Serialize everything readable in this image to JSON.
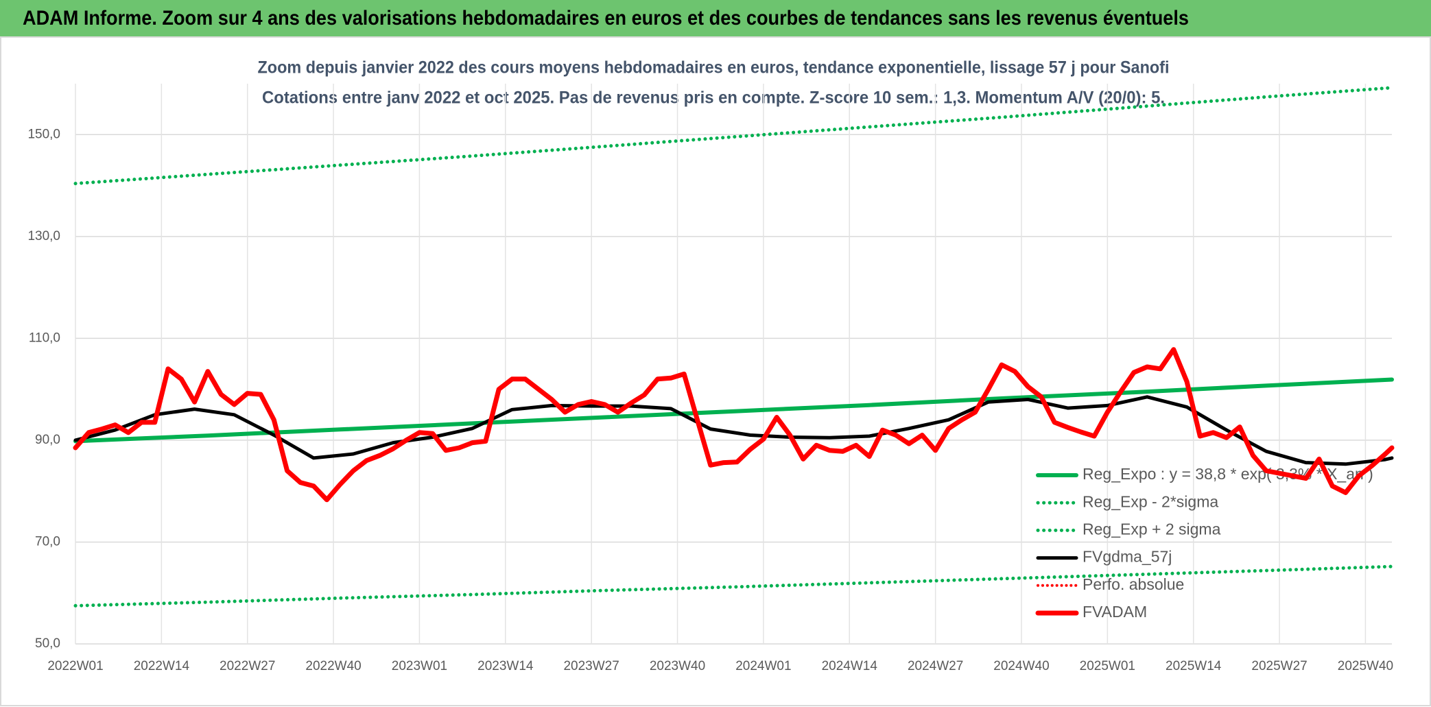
{
  "header": {
    "title": "ADAM Informe. Zoom sur 4 ans des valorisations hebdomadaires en euros et des courbes de tendances sans les revenus éventuels"
  },
  "chart_data": {
    "type": "line",
    "title": "Zoom depuis janvier 2022 des cours moyens hebdomadaires en euros, tendance exponentielle, lissage 57 j pour Sanofi",
    "subtitle": "Cotations entre janv 2022 et oct 2025. Pas de revenus pris en compte. Z-score 10 sem.: 1,3. Momentum A/V (20/0): 5.",
    "xlim": [
      0,
      199
    ],
    "xticks": [
      {
        "value": 0,
        "label": "2022W01"
      },
      {
        "value": 13,
        "label": "2022W14"
      },
      {
        "value": 26,
        "label": "2022W27"
      },
      {
        "value": 39,
        "label": "2022W40"
      },
      {
        "value": 52,
        "label": "2023W01"
      },
      {
        "value": 65,
        "label": "2023W14"
      },
      {
        "value": 78,
        "label": "2023W27"
      },
      {
        "value": 91,
        "label": "2023W40"
      },
      {
        "value": 104,
        "label": "2024W01"
      },
      {
        "value": 117,
        "label": "2024W14"
      },
      {
        "value": 130,
        "label": "2024W27"
      },
      {
        "value": 143,
        "label": "2024W40"
      },
      {
        "value": 156,
        "label": "2025W01"
      },
      {
        "value": 169,
        "label": "2025W14"
      },
      {
        "value": 182,
        "label": "2025W27"
      },
      {
        "value": 195,
        "label": "2025W40"
      }
    ],
    "ylim": [
      50,
      160
    ],
    "yticks": [
      {
        "value": 50,
        "label": "50,0"
      },
      {
        "value": 70,
        "label": "70,0"
      },
      {
        "value": 90,
        "label": "90,0"
      },
      {
        "value": 110,
        "label": "110,0"
      },
      {
        "value": 130,
        "label": "130,0"
      },
      {
        "value": 150,
        "label": "150,0"
      }
    ],
    "grid": true,
    "legend": "bottom-right",
    "series": [
      {
        "name": "Reg_Expo : y = 38,8 * exp( 3,3% * X_an )",
        "color": "#00b050",
        "style": "solid",
        "width": 6,
        "x": [
          0,
          20,
          40,
          60,
          80,
          100,
          120,
          140,
          160,
          180,
          199
        ],
        "values": [
          89.8,
          90.9,
          92.1,
          93.3,
          94.5,
          95.7,
          96.9,
          98.2,
          99.4,
          100.7,
          101.9
        ]
      },
      {
        "name": "Reg_Exp - 2*sigma",
        "color": "#00b050",
        "style": "dotted",
        "width": 5,
        "x": [
          0,
          20,
          40,
          60,
          80,
          100,
          120,
          140,
          160,
          180,
          199
        ],
        "values": [
          57.5,
          58.2,
          59.0,
          59.7,
          60.5,
          61.2,
          62.0,
          62.8,
          63.6,
          64.4,
          65.2
        ]
      },
      {
        "name": "Reg_Exp + 2 sigma",
        "color": "#00b050",
        "style": "dotted",
        "width": 5,
        "x": [
          0,
          20,
          40,
          60,
          80,
          100,
          120,
          140,
          160,
          180,
          199
        ],
        "values": [
          140.4,
          142.2,
          144.0,
          145.8,
          147.7,
          149.6,
          151.5,
          153.4,
          155.4,
          157.4,
          159.2
        ]
      },
      {
        "name": "FVgdma_57j",
        "color": "#000000",
        "style": "solid",
        "width": 5,
        "x": [
          0,
          6,
          12,
          18,
          24,
          30,
          36,
          42,
          48,
          54,
          60,
          66,
          72,
          78,
          84,
          90,
          96,
          102,
          108,
          114,
          120,
          126,
          132,
          138,
          144,
          150,
          156,
          162,
          168,
          174,
          180,
          186,
          192,
          198,
          199
        ],
        "values": [
          90,
          92,
          95,
          96.1,
          95,
          91,
          86.5,
          87.3,
          89.5,
          90.6,
          92.3,
          96,
          96.8,
          96.7,
          96.7,
          96.2,
          92.2,
          91,
          90.6,
          90.5,
          90.8,
          92.3,
          94,
          97.5,
          98,
          96.3,
          96.8,
          98.5,
          96.5,
          92,
          87.8,
          85.6,
          85.3,
          86.2,
          86.5
        ]
      },
      {
        "name": "Perfo. absolue",
        "color": "#ff0000",
        "style": "dotted",
        "width": 4
      },
      {
        "name": "FVADAM",
        "color": "#ff0000",
        "style": "solid",
        "width": 7,
        "x": [
          0,
          2,
          4,
          6,
          8,
          10,
          12,
          14,
          16,
          18,
          20,
          22,
          24,
          26,
          28,
          30,
          32,
          34,
          36,
          38,
          40,
          42,
          44,
          46,
          48,
          50,
          52,
          54,
          56,
          58,
          60,
          62,
          64,
          66,
          68,
          70,
          72,
          74,
          76,
          78,
          80,
          82,
          84,
          86,
          88,
          90,
          92,
          94,
          96,
          98,
          100,
          102,
          104,
          106,
          108,
          110,
          112,
          114,
          116,
          118,
          120,
          122,
          124,
          126,
          128,
          130,
          132,
          134,
          136,
          138,
          140,
          142,
          144,
          146,
          148,
          150,
          152,
          154,
          156,
          158,
          160,
          162,
          164,
          166,
          168,
          170,
          172,
          174,
          176,
          178,
          180,
          182,
          184,
          186,
          188,
          190,
          192,
          194,
          196,
          198,
          199
        ],
        "values": [
          88.5,
          91.5,
          92.2,
          93,
          91.5,
          93.5,
          93.5,
          104,
          102,
          97.5,
          103.5,
          99,
          97,
          99.2,
          99,
          94,
          84,
          81.7,
          81,
          78.3,
          81.3,
          84,
          86,
          87,
          88.3,
          90,
          91.5,
          91.3,
          88,
          88.5,
          89.5,
          89.8,
          100,
          102,
          102,
          100,
          98,
          95.5,
          97,
          97.6,
          97,
          95.5,
          97.3,
          98.9,
          102,
          102.2,
          103,
          94,
          85.1,
          85.6,
          85.7,
          88.2,
          90.2,
          94.5,
          91,
          86.3,
          89,
          88,
          87.8,
          89,
          86.8,
          92,
          91,
          89.3,
          91,
          88,
          92.3,
          94,
          95.5,
          100,
          104.8,
          103.5,
          100.5,
          98.5,
          93.5,
          92.5,
          91.6,
          90.8,
          95.5,
          99.5,
          103.3,
          104.4,
          104,
          107.8,
          101.5,
          90.8,
          91.5,
          90.5,
          92.6,
          87,
          84,
          83.5,
          83,
          82.5,
          86.3,
          81,
          79.7,
          83,
          85,
          87.3,
          88.5
        ]
      }
    ]
  }
}
